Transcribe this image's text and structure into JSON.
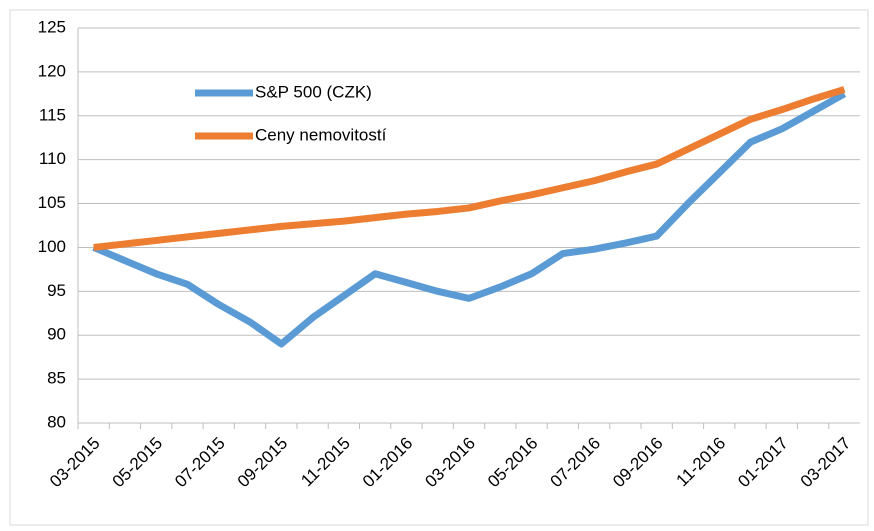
{
  "chart_data": {
    "type": "line",
    "categories": [
      "03-2015",
      null,
      "05-2015",
      null,
      "07-2015",
      null,
      "09-2015",
      null,
      "11-2015",
      null,
      "01-2016",
      null,
      "03-2016",
      null,
      "05-2016",
      null,
      "07-2016",
      null,
      "09-2016",
      null,
      "11-2016",
      null,
      "01-2017",
      null,
      "03-2017"
    ],
    "series": [
      {
        "name": "S&P 500 (CZK)",
        "color": "#5b9bd5",
        "values": [
          100,
          98.5,
          97,
          95.8,
          93.5,
          91.5,
          89,
          92,
          94.5,
          97,
          96,
          95,
          94.2,
          95.5,
          97,
          99.3,
          99.8,
          100.5,
          101.3,
          105,
          108.5,
          112,
          113.5,
          115.5,
          117.5
        ]
      },
      {
        "name": "Ceny nemovitostí",
        "color": "#ed7d31",
        "values": [
          100,
          100.4,
          100.8,
          101.2,
          101.6,
          102,
          102.4,
          102.7,
          103,
          103.4,
          103.8,
          104.1,
          104.5,
          105.3,
          106,
          106.8,
          107.6,
          108.6,
          109.5,
          111.2,
          112.9,
          114.6,
          115.7,
          116.9,
          118
        ]
      }
    ],
    "ylim": [
      80,
      125
    ],
    "yticks": [
      80,
      85,
      90,
      95,
      100,
      105,
      110,
      115,
      120,
      125
    ],
    "grid": true,
    "legend": "upper left"
  }
}
